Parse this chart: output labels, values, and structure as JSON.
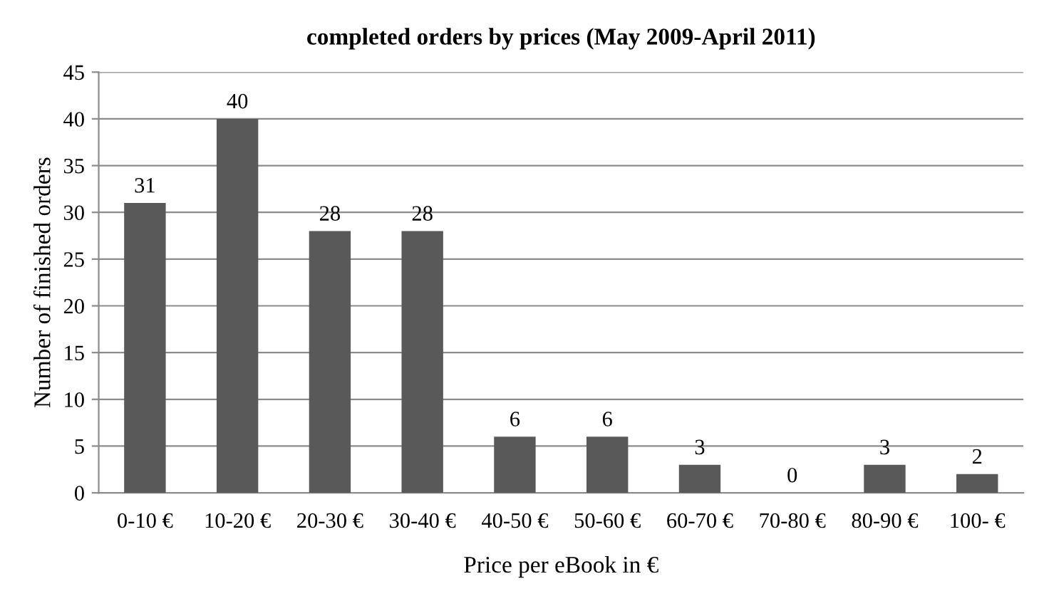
{
  "chart_data": {
    "type": "bar",
    "title": "completed orders by prices (May 2009-April 2011)",
    "xlabel": "Price per eBook in €",
    "ylabel": "Number of finished orders",
    "categories": [
      "0-10 €",
      "10-20 €",
      "20-30 €",
      "30-40 €",
      "40-50 €",
      "50-60 €",
      "60-70 €",
      "70-80 €",
      "80-90 €",
      "100- €"
    ],
    "values": [
      31,
      40,
      28,
      28,
      6,
      6,
      3,
      0,
      3,
      2
    ],
    "color": "#595959",
    "ylim": [
      0,
      45
    ],
    "yticks": [
      0,
      5,
      10,
      15,
      20,
      25,
      30,
      35,
      40,
      45
    ],
    "grid": "y",
    "data_labels": true
  }
}
